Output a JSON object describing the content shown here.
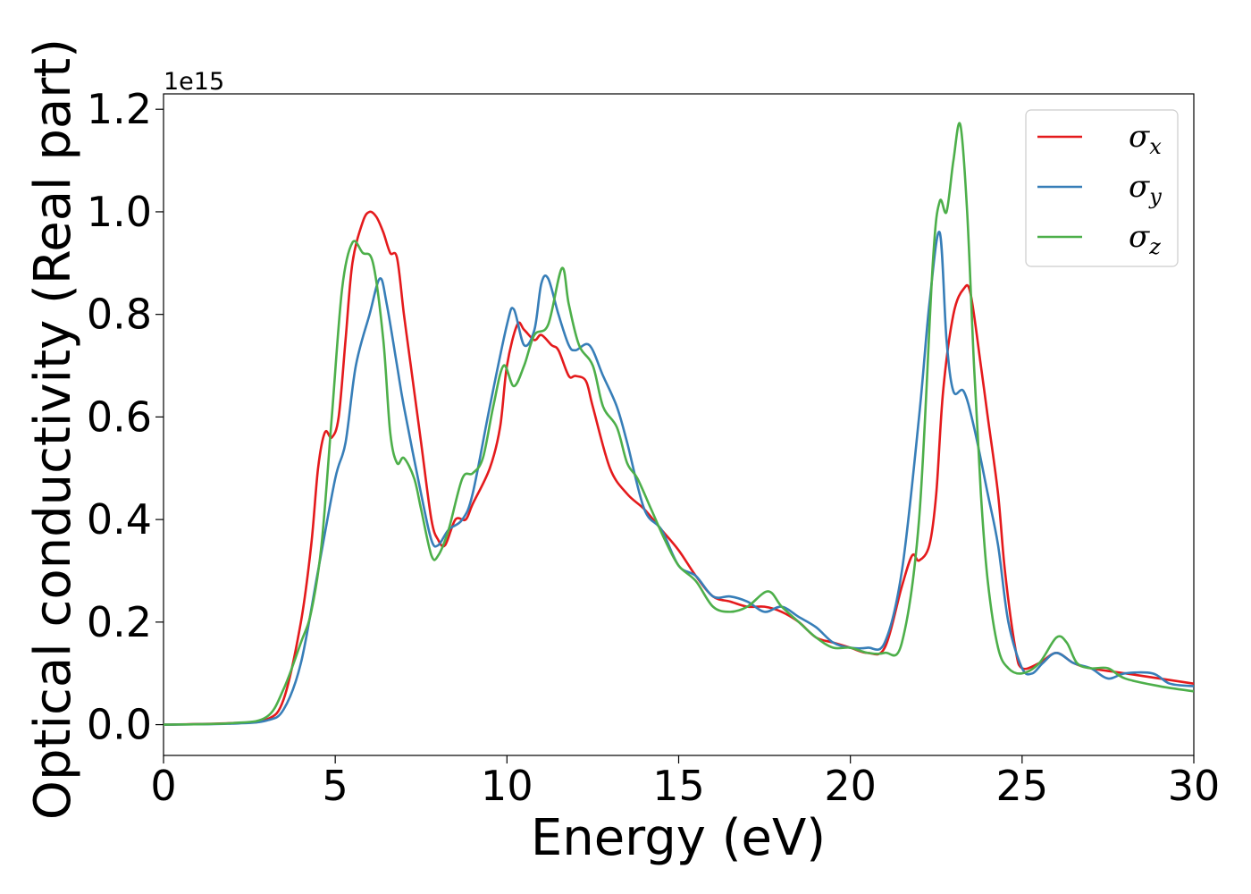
{
  "chart_data": {
    "type": "line",
    "xlabel": "Energy (eV)",
    "ylabel": "Optical conductivity (Real part)",
    "y_offset_text": "1e15",
    "xlim": [
      0,
      30
    ],
    "ylim": [
      -0.06,
      1.23
    ],
    "xticks": [
      0,
      5,
      10,
      15,
      20,
      25,
      30
    ],
    "xtick_labels": [
      "0",
      "5",
      "10",
      "15",
      "20",
      "25",
      "30"
    ],
    "yticks": [
      0.0,
      0.2,
      0.4,
      0.6,
      0.8,
      1.0,
      1.2
    ],
    "ytick_labels": [
      "0.0",
      "0.2",
      "0.4",
      "0.6",
      "0.8",
      "1.0",
      "1.2"
    ],
    "grid": false,
    "legend_position": "top-right",
    "series": [
      {
        "name": "σx",
        "symbol": "σ",
        "subscript": "x",
        "color": "#e41a1c",
        "points": [
          [
            0,
            0
          ],
          [
            2,
            0.003
          ],
          [
            3,
            0.01
          ],
          [
            3.5,
            0.05
          ],
          [
            4,
            0.2
          ],
          [
            4.3,
            0.35
          ],
          [
            4.5,
            0.5
          ],
          [
            4.7,
            0.57
          ],
          [
            4.9,
            0.56
          ],
          [
            5.1,
            0.6
          ],
          [
            5.3,
            0.75
          ],
          [
            5.5,
            0.9
          ],
          [
            5.8,
            0.98
          ],
          [
            6.0,
            1.0
          ],
          [
            6.2,
            0.99
          ],
          [
            6.4,
            0.96
          ],
          [
            6.6,
            0.92
          ],
          [
            6.8,
            0.91
          ],
          [
            7.0,
            0.8
          ],
          [
            7.2,
            0.7
          ],
          [
            7.5,
            0.55
          ],
          [
            7.8,
            0.4
          ],
          [
            8.0,
            0.36
          ],
          [
            8.2,
            0.35
          ],
          [
            8.5,
            0.4
          ],
          [
            8.8,
            0.4
          ],
          [
            9.0,
            0.43
          ],
          [
            9.5,
            0.5
          ],
          [
            9.8,
            0.58
          ],
          [
            10.0,
            0.7
          ],
          [
            10.3,
            0.78
          ],
          [
            10.5,
            0.77
          ],
          [
            10.8,
            0.75
          ],
          [
            11.0,
            0.76
          ],
          [
            11.3,
            0.74
          ],
          [
            11.5,
            0.73
          ],
          [
            11.8,
            0.68
          ],
          [
            12.0,
            0.68
          ],
          [
            12.3,
            0.67
          ],
          [
            12.5,
            0.62
          ],
          [
            13.0,
            0.5
          ],
          [
            13.5,
            0.45
          ],
          [
            14.0,
            0.42
          ],
          [
            14.5,
            0.38
          ],
          [
            15.0,
            0.34
          ],
          [
            15.5,
            0.29
          ],
          [
            16.0,
            0.25
          ],
          [
            16.5,
            0.24
          ],
          [
            17.0,
            0.23
          ],
          [
            17.5,
            0.23
          ],
          [
            18.0,
            0.22
          ],
          [
            18.5,
            0.2
          ],
          [
            19.0,
            0.17
          ],
          [
            19.5,
            0.16
          ],
          [
            20.0,
            0.15
          ],
          [
            20.5,
            0.14
          ],
          [
            21.0,
            0.15
          ],
          [
            21.5,
            0.27
          ],
          [
            21.8,
            0.33
          ],
          [
            22.0,
            0.32
          ],
          [
            22.3,
            0.35
          ],
          [
            22.5,
            0.45
          ],
          [
            22.7,
            0.65
          ],
          [
            23.0,
            0.8
          ],
          [
            23.3,
            0.85
          ],
          [
            23.5,
            0.84
          ],
          [
            23.8,
            0.7
          ],
          [
            24.0,
            0.6
          ],
          [
            24.3,
            0.45
          ],
          [
            24.5,
            0.3
          ],
          [
            24.8,
            0.15
          ],
          [
            25.0,
            0.11
          ],
          [
            25.5,
            0.12
          ],
          [
            26.0,
            0.14
          ],
          [
            26.5,
            0.12
          ],
          [
            27.0,
            0.11
          ],
          [
            28.0,
            0.1
          ],
          [
            29.0,
            0.09
          ],
          [
            30.0,
            0.08
          ]
        ]
      },
      {
        "name": "σy",
        "symbol": "σ",
        "subscript": "y",
        "color": "#377eb8",
        "points": [
          [
            0,
            0
          ],
          [
            2,
            0.002
          ],
          [
            3,
            0.008
          ],
          [
            3.5,
            0.03
          ],
          [
            4,
            0.12
          ],
          [
            4.5,
            0.3
          ],
          [
            5.0,
            0.48
          ],
          [
            5.3,
            0.55
          ],
          [
            5.6,
            0.7
          ],
          [
            6.0,
            0.8
          ],
          [
            6.3,
            0.87
          ],
          [
            6.5,
            0.82
          ],
          [
            6.8,
            0.7
          ],
          [
            7.0,
            0.62
          ],
          [
            7.5,
            0.45
          ],
          [
            7.8,
            0.36
          ],
          [
            8.0,
            0.35
          ],
          [
            8.3,
            0.38
          ],
          [
            8.7,
            0.4
          ],
          [
            9.0,
            0.45
          ],
          [
            9.5,
            0.62
          ],
          [
            10.0,
            0.78
          ],
          [
            10.2,
            0.81
          ],
          [
            10.5,
            0.74
          ],
          [
            10.8,
            0.77
          ],
          [
            11.0,
            0.86
          ],
          [
            11.2,
            0.87
          ],
          [
            11.5,
            0.8
          ],
          [
            11.8,
            0.74
          ],
          [
            12.0,
            0.73
          ],
          [
            12.4,
            0.74
          ],
          [
            12.8,
            0.68
          ],
          [
            13.2,
            0.62
          ],
          [
            13.5,
            0.55
          ],
          [
            14.0,
            0.42
          ],
          [
            14.5,
            0.38
          ],
          [
            15.0,
            0.31
          ],
          [
            15.5,
            0.29
          ],
          [
            16.0,
            0.25
          ],
          [
            16.5,
            0.25
          ],
          [
            17.0,
            0.24
          ],
          [
            17.5,
            0.22
          ],
          [
            18.0,
            0.23
          ],
          [
            18.5,
            0.21
          ],
          [
            19.0,
            0.19
          ],
          [
            19.5,
            0.16
          ],
          [
            20.0,
            0.15
          ],
          [
            20.5,
            0.15
          ],
          [
            21.0,
            0.16
          ],
          [
            21.5,
            0.3
          ],
          [
            22.0,
            0.6
          ],
          [
            22.3,
            0.82
          ],
          [
            22.6,
            0.96
          ],
          [
            22.8,
            0.75
          ],
          [
            23.0,
            0.65
          ],
          [
            23.3,
            0.65
          ],
          [
            23.6,
            0.58
          ],
          [
            24.0,
            0.45
          ],
          [
            24.3,
            0.35
          ],
          [
            24.6,
            0.2
          ],
          [
            25.0,
            0.11
          ],
          [
            25.3,
            0.1
          ],
          [
            25.6,
            0.12
          ],
          [
            26.0,
            0.14
          ],
          [
            26.5,
            0.12
          ],
          [
            27.0,
            0.11
          ],
          [
            27.5,
            0.09
          ],
          [
            28.0,
            0.1
          ],
          [
            28.8,
            0.1
          ],
          [
            29.3,
            0.08
          ],
          [
            30.0,
            0.075
          ]
        ]
      },
      {
        "name": "σz",
        "symbol": "σ",
        "subscript": "z",
        "color": "#4daf4a",
        "points": [
          [
            0,
            0
          ],
          [
            2,
            0.003
          ],
          [
            3,
            0.015
          ],
          [
            3.5,
            0.07
          ],
          [
            4,
            0.16
          ],
          [
            4.3,
            0.22
          ],
          [
            4.6,
            0.35
          ],
          [
            4.9,
            0.6
          ],
          [
            5.2,
            0.85
          ],
          [
            5.5,
            0.94
          ],
          [
            5.8,
            0.92
          ],
          [
            6.1,
            0.9
          ],
          [
            6.4,
            0.75
          ],
          [
            6.6,
            0.57
          ],
          [
            6.8,
            0.51
          ],
          [
            7.0,
            0.52
          ],
          [
            7.3,
            0.48
          ],
          [
            7.5,
            0.42
          ],
          [
            7.8,
            0.33
          ],
          [
            8.0,
            0.33
          ],
          [
            8.3,
            0.38
          ],
          [
            8.7,
            0.48
          ],
          [
            9.0,
            0.49
          ],
          [
            9.3,
            0.52
          ],
          [
            9.6,
            0.62
          ],
          [
            9.9,
            0.7
          ],
          [
            10.2,
            0.66
          ],
          [
            10.5,
            0.7
          ],
          [
            10.8,
            0.76
          ],
          [
            11.2,
            0.78
          ],
          [
            11.6,
            0.89
          ],
          [
            11.8,
            0.82
          ],
          [
            12.1,
            0.74
          ],
          [
            12.5,
            0.7
          ],
          [
            12.8,
            0.62
          ],
          [
            13.2,
            0.58
          ],
          [
            13.5,
            0.51
          ],
          [
            13.8,
            0.48
          ],
          [
            14.2,
            0.42
          ],
          [
            14.6,
            0.36
          ],
          [
            15.0,
            0.31
          ],
          [
            15.5,
            0.28
          ],
          [
            16.0,
            0.23
          ],
          [
            16.5,
            0.22
          ],
          [
            17.0,
            0.23
          ],
          [
            17.6,
            0.26
          ],
          [
            18.0,
            0.23
          ],
          [
            18.5,
            0.2
          ],
          [
            19.0,
            0.17
          ],
          [
            19.5,
            0.15
          ],
          [
            20.0,
            0.15
          ],
          [
            20.5,
            0.14
          ],
          [
            21.0,
            0.14
          ],
          [
            21.5,
            0.16
          ],
          [
            22.0,
            0.4
          ],
          [
            22.4,
            0.9
          ],
          [
            22.6,
            1.02
          ],
          [
            22.8,
            1.0
          ],
          [
            23.0,
            1.1
          ],
          [
            23.2,
            1.17
          ],
          [
            23.4,
            1.0
          ],
          [
            23.6,
            0.7
          ],
          [
            23.8,
            0.45
          ],
          [
            24.0,
            0.28
          ],
          [
            24.3,
            0.15
          ],
          [
            24.6,
            0.11
          ],
          [
            25.0,
            0.1
          ],
          [
            25.5,
            0.12
          ],
          [
            26.0,
            0.17
          ],
          [
            26.3,
            0.16
          ],
          [
            26.6,
            0.12
          ],
          [
            27.0,
            0.11
          ],
          [
            27.5,
            0.11
          ],
          [
            28.0,
            0.09
          ],
          [
            29.0,
            0.075
          ],
          [
            30.0,
            0.065
          ]
        ]
      }
    ]
  }
}
